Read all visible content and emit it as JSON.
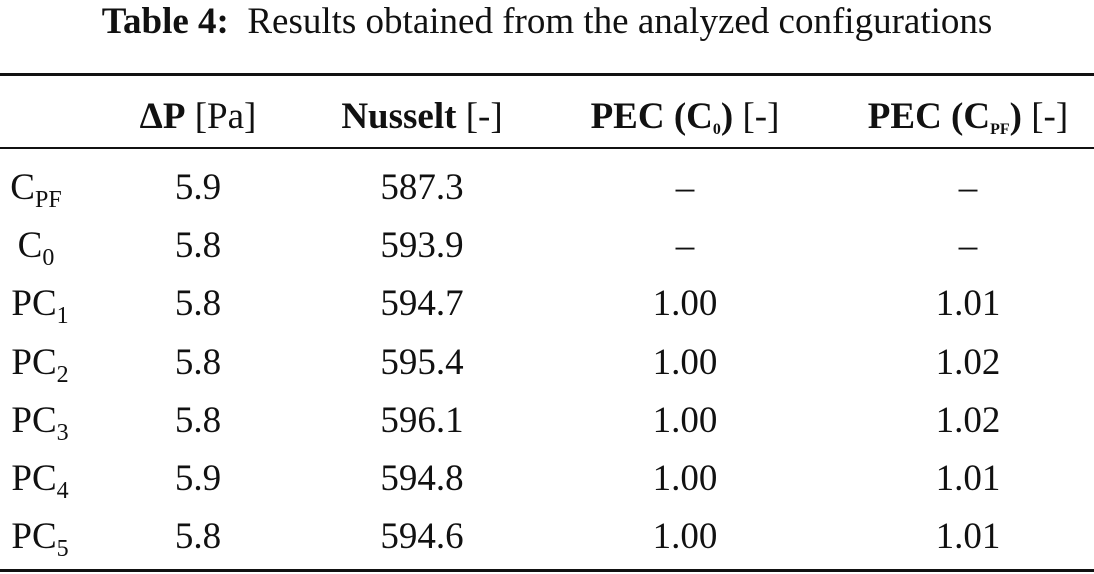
{
  "caption": {
    "label": "Table 4:",
    "text": "Results obtained from the analyzed configurations"
  },
  "table": {
    "header": [
      [
        "ΔP",
        "[Pa]"
      ],
      [
        "Nusselt",
        "[-]"
      ],
      [
        "PEC (C",
        "0",
        ")",
        "[-]"
      ],
      [
        "PEC (C",
        "PF",
        ")",
        "[-]"
      ]
    ],
    "rows": [
      {
        "label": [
          "C",
          "PF"
        ],
        "cells": [
          "5.9",
          "587.3",
          "–",
          "–"
        ]
      },
      {
        "label": [
          "C",
          "0"
        ],
        "cells": [
          "5.8",
          "593.9",
          "–",
          "–"
        ]
      },
      {
        "label": [
          "PC",
          "1"
        ],
        "cells": [
          "5.8",
          "594.7",
          "1.00",
          "1.01"
        ]
      },
      {
        "label": [
          "PC",
          "2"
        ],
        "cells": [
          "5.8",
          "595.4",
          "1.00",
          "1.02"
        ]
      },
      {
        "label": [
          "PC",
          "3"
        ],
        "cells": [
          "5.8",
          "596.1",
          "1.00",
          "1.02"
        ]
      },
      {
        "label": [
          "PC",
          "4"
        ],
        "cells": [
          "5.9",
          "594.8",
          "1.00",
          "1.01"
        ]
      },
      {
        "label": [
          "PC",
          "5"
        ],
        "cells": [
          "5.8",
          "594.6",
          "1.00",
          "1.01"
        ]
      }
    ]
  }
}
